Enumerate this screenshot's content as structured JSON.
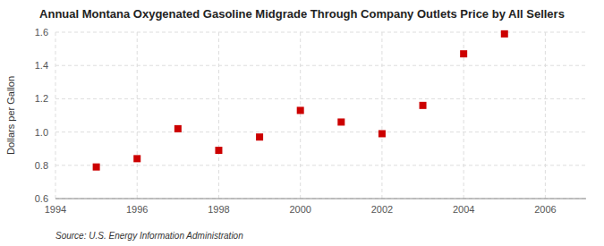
{
  "chart_data": {
    "type": "scatter",
    "title": "Annual Montana Oxygenated Gasoline Midgrade Through Company Outlets Price by All Sellers",
    "ylabel": "Dollars per Gallon",
    "source": "Source: U.S. Energy Information Administration",
    "x": [
      1995,
      1996,
      1997,
      1998,
      1999,
      2000,
      2001,
      2002,
      2003,
      2004,
      2005
    ],
    "values": [
      0.79,
      0.84,
      1.02,
      0.89,
      0.97,
      1.13,
      1.06,
      0.99,
      1.16,
      1.47,
      1.59
    ],
    "xlim": [
      1994,
      2007
    ],
    "ylim": [
      0.6,
      1.6
    ],
    "xticks": [
      1994,
      1996,
      1998,
      2000,
      2002,
      2004,
      2006
    ],
    "yticks": [
      0.6,
      0.8,
      {
        "value": 1.0,
        "label": "1.0"
      },
      1.2,
      1.4,
      1.6
    ],
    "color": "#cc0000",
    "marker": "square",
    "grid": true
  }
}
